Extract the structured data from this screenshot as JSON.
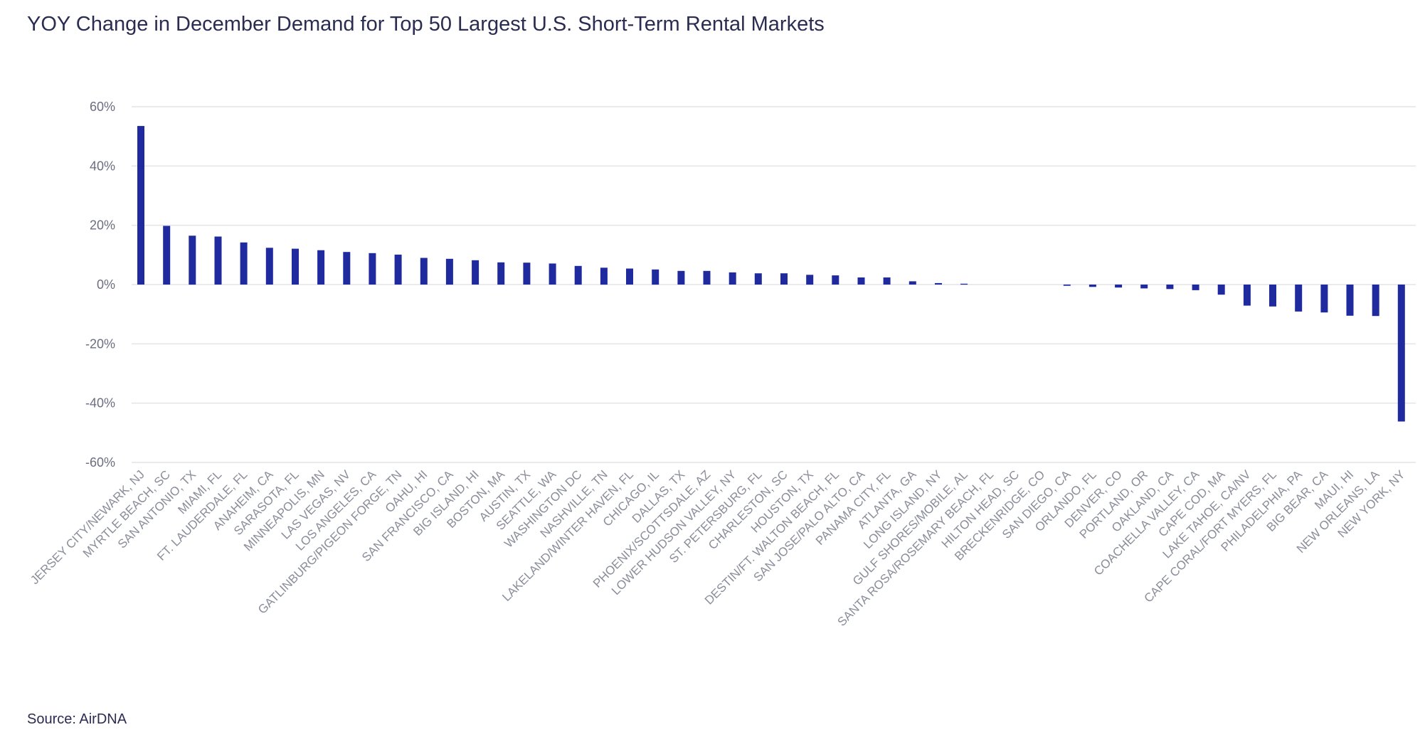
{
  "chart_data": {
    "type": "bar",
    "title": "YOY Change in December Demand for Top 50 Largest U.S. Short-Term Rental Markets",
    "source": "Source: AirDNA",
    "xlabel": "",
    "ylabel": "",
    "ylim": [
      -60,
      60
    ],
    "yticks": [
      60,
      40,
      20,
      0,
      -20,
      -40,
      -60
    ],
    "ytick_labels": [
      "60%",
      "40%",
      "20%",
      "0%",
      "-20%",
      "-40%",
      "-60%"
    ],
    "grid": true,
    "legend": "none",
    "bar_color": "#1f2a9e",
    "categories": [
      "JERSEY CITY/NEWARK, NJ",
      "MYRTLE BEACH, SC",
      "SAN ANTONIO, TX",
      "MIAMI, FL",
      "FT. LAUDERDALE, FL",
      "ANAHEIM, CA",
      "SARASOTA, FL",
      "MINNEAPOLIS, MN",
      "LAS VEGAS, NV",
      "LOS ANGELES, CA",
      "GATLINBURG/PIGEON FORGE, TN",
      "OAHU, HI",
      "SAN FRANCISCO, CA",
      "BIG ISLAND, HI",
      "BOSTON, MA",
      "AUSTIN, TX",
      "SEATTLE, WA",
      "WASHINGTON DC",
      "NASHVILLE, TN",
      "LAKELAND/WINTER HAVEN, FL",
      "CHICAGO, IL",
      "DALLAS, TX",
      "PHOENIX/SCOTTSDALE, AZ",
      "LOWER HUDSON VALLEY, NY",
      "ST. PETERSBURG, FL",
      "CHARLESTON, SC",
      "HOUSTON, TX",
      "DESTIN/FT. WALTON BEACH, FL",
      "SAN JOSE/PALO ALTO, CA",
      "PANAMA CITY, FL",
      "ATLANTA, GA",
      "LONG ISLAND, NY",
      "GULF SHORES/MOBILE, AL",
      "SANTA ROSA/ROSEMARY BEACH, FL",
      "HILTON HEAD, SC",
      "BRECKENRIDGE, CO",
      "SAN DIEGO, CA",
      "ORLANDO, FL",
      "DENVER, CO",
      "PORTLAND, OR",
      "OAKLAND, CA",
      "COACHELLA VALLEY, CA",
      "CAPE COD, MA",
      "LAKE TAHOE, CA/NV",
      "CAPE CORAL/FORT MYERS, FL",
      "PHILADELPHIA, PA",
      "BIG BEAR, CA",
      "MAUI, HI",
      "NEW ORLEANS, LA",
      "NEW YORK, NY"
    ],
    "values": [
      53.5,
      19.8,
      16.5,
      16.2,
      14.2,
      12.4,
      12.1,
      11.6,
      11.0,
      10.6,
      10.1,
      9.0,
      8.7,
      8.2,
      7.5,
      7.4,
      7.1,
      6.3,
      5.7,
      5.4,
      5.1,
      4.6,
      4.6,
      4.1,
      3.8,
      3.8,
      3.3,
      3.1,
      2.4,
      2.4,
      1.1,
      0.5,
      0.3,
      0.0,
      0.0,
      0.0,
      -0.4,
      -0.8,
      -1.0,
      -1.3,
      -1.5,
      -1.9,
      -3.4,
      -7.1,
      -7.4,
      -9.1,
      -9.4,
      -10.5,
      -10.6,
      -46.2
    ]
  }
}
